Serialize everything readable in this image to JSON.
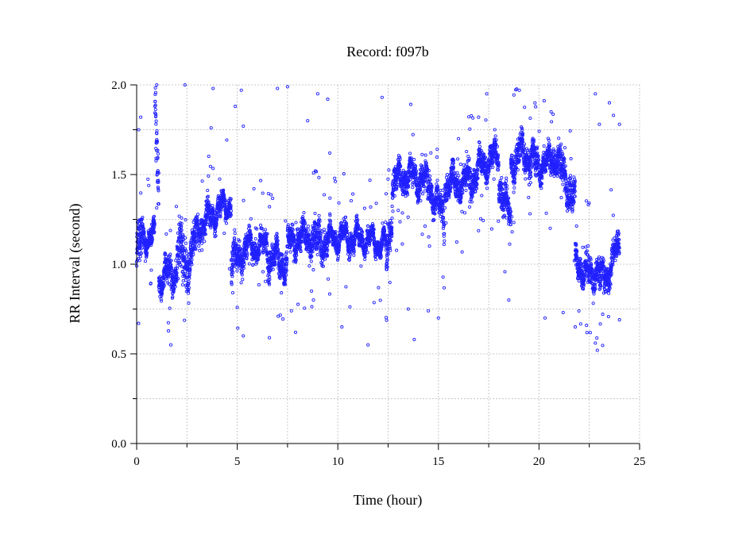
{
  "chart_data": {
    "type": "scatter",
    "title": "Record:  f097b",
    "xlabel": "Time (hour)",
    "ylabel": "RR Interval (second)",
    "xlim": [
      0,
      25
    ],
    "ylim": [
      0.0,
      2.0
    ],
    "xticks": [
      "0",
      "5",
      "10",
      "15",
      "20",
      "25"
    ],
    "yticks": [
      "0.0",
      "0.5",
      "1.0",
      "1.5",
      "2.0"
    ],
    "grid": true,
    "marker": "open-circle",
    "color": "#2020ff",
    "segments": [
      {
        "start": 0.0,
        "end": 0.3,
        "level": [
          1.05,
          1.15
        ],
        "band": 0.18
      },
      {
        "start": 0.3,
        "end": 0.9,
        "level": [
          1.15,
          1.15
        ],
        "band": 0.08
      },
      {
        "start": 0.9,
        "end": 1.1,
        "level": [
          1.9,
          1.4
        ],
        "band": 0.25
      },
      {
        "start": 1.1,
        "end": 1.5,
        "level": [
          0.9,
          0.95
        ],
        "band": 0.1
      },
      {
        "start": 1.5,
        "end": 2.0,
        "level": [
          0.95,
          0.95
        ],
        "band": 0.1
      },
      {
        "start": 2.0,
        "end": 2.5,
        "level": [
          1.1,
          1.0
        ],
        "band": 0.2
      },
      {
        "start": 2.5,
        "end": 3.0,
        "level": [
          1.0,
          1.15
        ],
        "band": 0.15
      },
      {
        "start": 3.0,
        "end": 3.8,
        "level": [
          1.2,
          1.28
        ],
        "band": 0.1
      },
      {
        "start": 3.8,
        "end": 4.7,
        "level": [
          1.28,
          1.35
        ],
        "band": 0.08
      },
      {
        "start": 4.7,
        "end": 5.5,
        "level": [
          1.0,
          1.1
        ],
        "band": 0.12
      },
      {
        "start": 5.5,
        "end": 6.5,
        "level": [
          1.1,
          1.1
        ],
        "band": 0.08
      },
      {
        "start": 6.5,
        "end": 7.5,
        "level": [
          1.05,
          1.0
        ],
        "band": 0.1
      },
      {
        "start": 7.5,
        "end": 8.5,
        "level": [
          1.12,
          1.15
        ],
        "band": 0.1
      },
      {
        "start": 8.5,
        "end": 9.5,
        "level": [
          1.15,
          1.12
        ],
        "band": 0.12
      },
      {
        "start": 9.5,
        "end": 10.5,
        "level": [
          1.14,
          1.16
        ],
        "band": 0.08
      },
      {
        "start": 10.5,
        "end": 11.5,
        "level": [
          1.14,
          1.14
        ],
        "band": 0.07
      },
      {
        "start": 11.5,
        "end": 12.4,
        "level": [
          1.14,
          1.1
        ],
        "band": 0.07
      },
      {
        "start": 12.4,
        "end": 12.7,
        "level": [
          1.0,
          1.3
        ],
        "band": 0.12
      },
      {
        "start": 12.7,
        "end": 13.5,
        "level": [
          1.45,
          1.5
        ],
        "band": 0.1
      },
      {
        "start": 13.5,
        "end": 14.5,
        "level": [
          1.5,
          1.45
        ],
        "band": 0.1
      },
      {
        "start": 14.5,
        "end": 15.3,
        "level": [
          1.45,
          1.25
        ],
        "band": 0.12
      },
      {
        "start": 15.3,
        "end": 16.0,
        "level": [
          1.45,
          1.45
        ],
        "band": 0.1
      },
      {
        "start": 16.0,
        "end": 17.0,
        "level": [
          1.45,
          1.5
        ],
        "band": 0.1
      },
      {
        "start": 17.0,
        "end": 18.0,
        "level": [
          1.55,
          1.6
        ],
        "band": 0.1
      },
      {
        "start": 18.0,
        "end": 18.6,
        "level": [
          1.45,
          1.25
        ],
        "band": 0.12
      },
      {
        "start": 18.6,
        "end": 19.2,
        "level": [
          1.55,
          1.65
        ],
        "band": 0.1
      },
      {
        "start": 19.2,
        "end": 20.0,
        "level": [
          1.62,
          1.55
        ],
        "band": 0.12
      },
      {
        "start": 20.0,
        "end": 21.0,
        "level": [
          1.55,
          1.6
        ],
        "band": 0.1
      },
      {
        "start": 21.0,
        "end": 21.8,
        "level": [
          1.55,
          1.35
        ],
        "band": 0.15
      },
      {
        "start": 21.8,
        "end": 22.5,
        "level": [
          1.0,
          0.95
        ],
        "band": 0.1
      },
      {
        "start": 22.5,
        "end": 23.0,
        "level": [
          0.9,
          1.0
        ],
        "band": 0.1
      },
      {
        "start": 23.0,
        "end": 23.5,
        "level": [
          0.9,
          0.95
        ],
        "band": 0.1
      },
      {
        "start": 23.5,
        "end": 24.0,
        "level": [
          1.0,
          1.1
        ],
        "band": 0.1
      }
    ],
    "outliers": [
      [
        0.1,
        1.75
      ],
      [
        0.1,
        0.67
      ],
      [
        0.2,
        1.82
      ],
      [
        1.0,
        2.0
      ],
      [
        1.7,
        0.55
      ],
      [
        2.4,
        2.0
      ],
      [
        3.7,
        1.76
      ],
      [
        3.8,
        1.98
      ],
      [
        4.9,
        1.88
      ],
      [
        5.2,
        1.97
      ],
      [
        5.3,
        1.77
      ],
      [
        5.3,
        0.6
      ],
      [
        6.6,
        0.59
      ],
      [
        7.0,
        1.98
      ],
      [
        7.5,
        1.99
      ],
      [
        7.9,
        0.62
      ],
      [
        8.5,
        1.8
      ],
      [
        9.0,
        1.95
      ],
      [
        9.5,
        1.92
      ],
      [
        9.6,
        1.62
      ],
      [
        10.2,
        0.65
      ],
      [
        11.5,
        0.55
      ],
      [
        12.2,
        1.93
      ],
      [
        13.0,
        1.3
      ],
      [
        13.5,
        0.75
      ],
      [
        13.8,
        0.58
      ],
      [
        14.5,
        0.74
      ],
      [
        15.0,
        0.7
      ],
      [
        16.0,
        1.7
      ],
      [
        17.0,
        1.82
      ],
      [
        17.4,
        1.95
      ],
      [
        17.8,
        1.75
      ],
      [
        18.5,
        0.8
      ],
      [
        20.3,
        0.7
      ],
      [
        20.6,
        1.85
      ],
      [
        21.2,
        0.73
      ],
      [
        21.8,
        0.65
      ],
      [
        22.8,
        1.95
      ],
      [
        23.0,
        1.78
      ],
      [
        23.5,
        1.9
      ],
      [
        23.7,
        1.83
      ],
      [
        24.0,
        1.78
      ],
      [
        22.8,
        0.56
      ],
      [
        22.9,
        0.52
      ],
      [
        24.0,
        0.69
      ]
    ]
  }
}
